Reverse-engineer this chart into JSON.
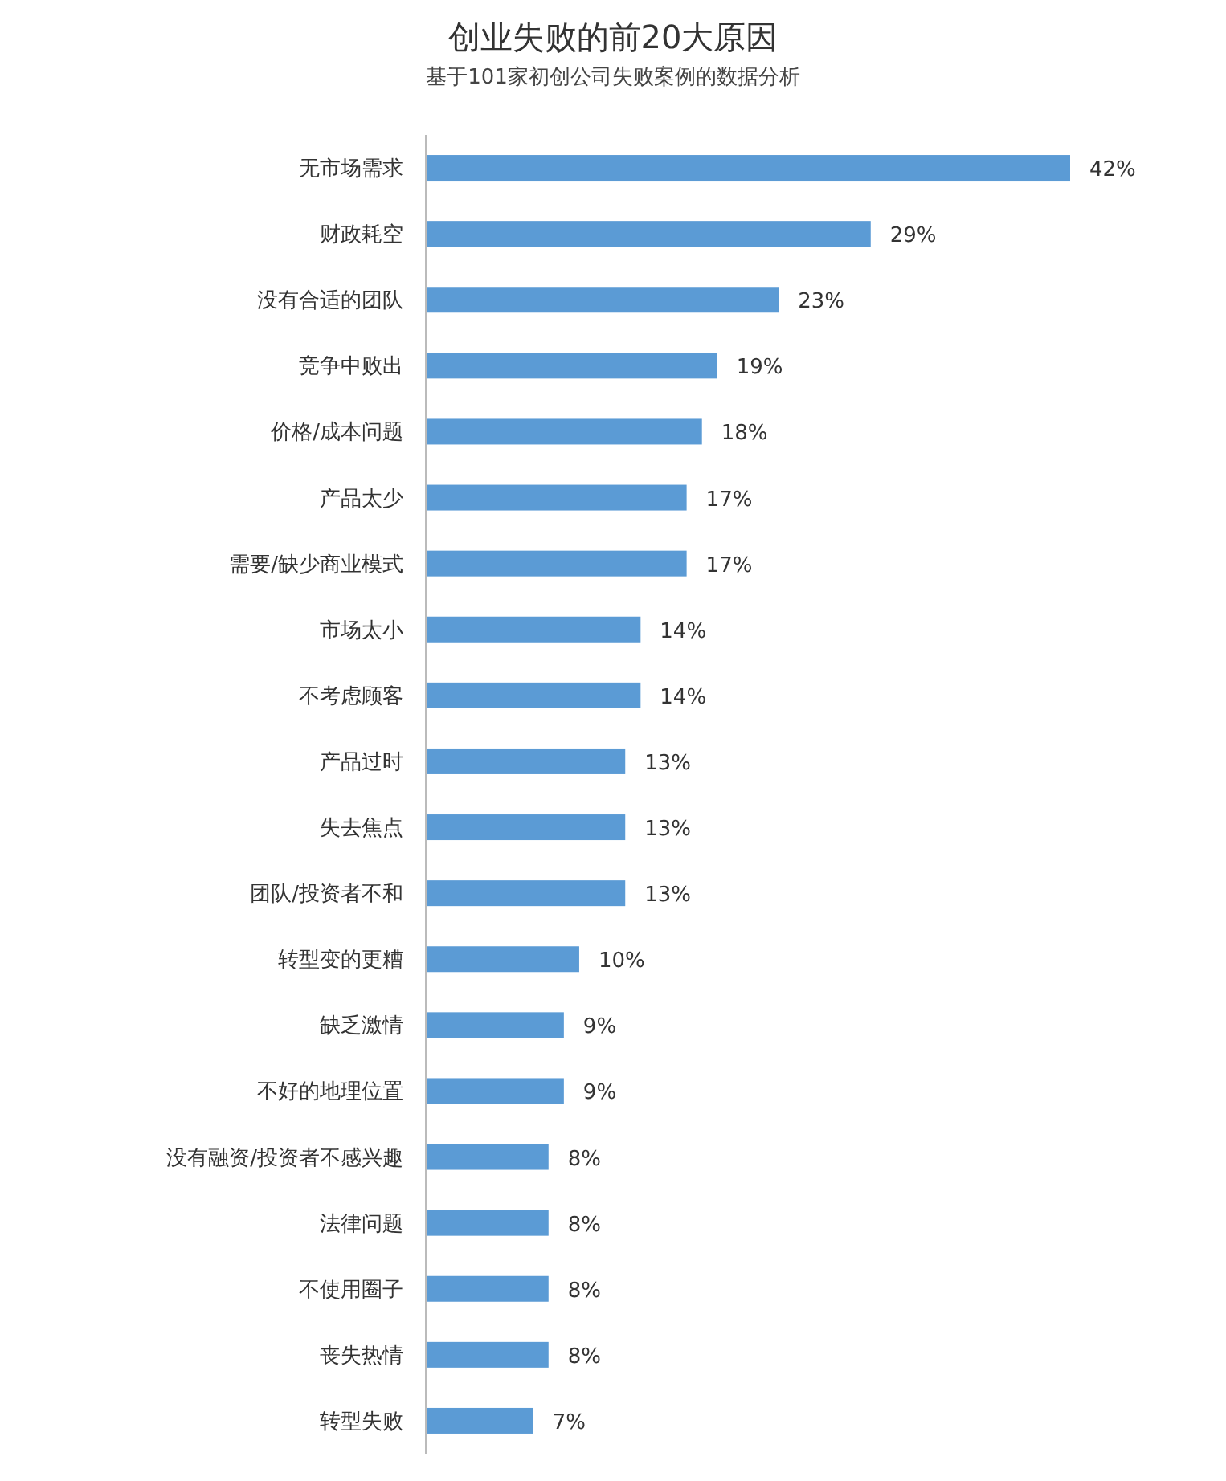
{
  "chart_data": {
    "type": "bar",
    "orientation": "horizontal",
    "title": "创业失败的前20大原因",
    "subtitle": "基于101家初创公司失败案例的数据分析",
    "categories": [
      "无市场需求",
      "财政耗空",
      "没有合适的团队",
      "竞争中败出",
      "价格/成本问题",
      "产品太少",
      "需要/缺少商业模式",
      "市场太小",
      "不考虑顾客",
      "产品过时",
      "失去焦点",
      "团队/投资者不和",
      "转型变的更糟",
      "缺乏激情",
      "不好的地理位置",
      "没有融资/投资者不感兴趣",
      "法律问题",
      "不使用圈子",
      "丧失热情",
      "转型失败"
    ],
    "values": [
      42,
      29,
      23,
      19,
      18,
      17,
      17,
      14,
      14,
      13,
      13,
      13,
      10,
      9,
      9,
      8,
      8,
      8,
      8,
      7
    ],
    "value_labels": [
      "42%",
      "29%",
      "23%",
      "19%",
      "18%",
      "17%",
      "17%",
      "14%",
      "14%",
      "13%",
      "13%",
      "13%",
      "10%",
      "9%",
      "9%",
      "8%",
      "8%",
      "8%",
      "8%",
      "7%"
    ],
    "color": "#5b9bd5"
  }
}
